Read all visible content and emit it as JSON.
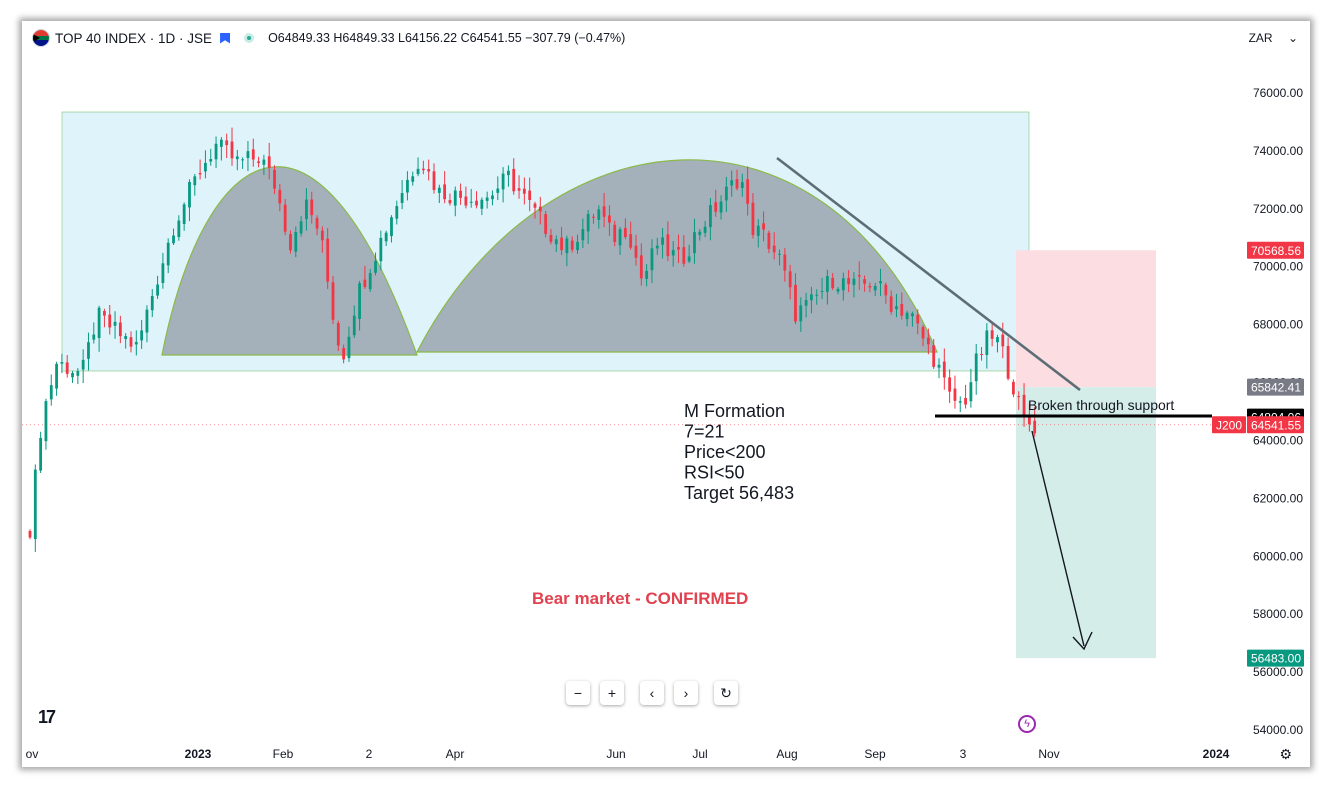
{
  "header": {
    "symbol": "TOP 40 INDEX · 1D · JSE",
    "ohlc": "O64849.33 H64849.33 L64156.22 C64541.55 −307.79 (−0.47%)",
    "currency": "ZAR",
    "currency_caret": "⌄"
  },
  "colors": {
    "up": "#089981",
    "down": "#f23645",
    "range_box": "#dff3fb",
    "dome_fill": "#9aa5ae",
    "dome_stroke": "#8bb94a",
    "stop_zone": "#fbdde2",
    "target_zone": "#d5ede8"
  },
  "chart_data": {
    "type": "candlestick",
    "y_axis": {
      "min": 53000,
      "max": 78000,
      "ticks": [
        54000,
        56000,
        58000,
        60000,
        62000,
        64000,
        66000,
        68000,
        70000,
        72000,
        74000,
        76000
      ],
      "tick_labels": [
        "54000.00",
        "56000.00",
        "58000.00",
        "60000.00",
        "62000.00",
        "64000.00",
        "66000.00",
        "68000.00",
        "70000.00",
        "72000.00",
        "74000.00",
        "76000.00"
      ]
    },
    "x_axis": {
      "labels": [
        "ov",
        "2023",
        "Feb",
        "2",
        "Apr",
        "Jun",
        "Jul",
        "Aug",
        "Sep",
        "3",
        "Nov",
        "2024"
      ]
    },
    "grid": false,
    "price_path": [
      [
        0,
        61000
      ],
      [
        8,
        64800
      ],
      [
        18,
        66700
      ],
      [
        35,
        66300
      ],
      [
        45,
        68300
      ],
      [
        62,
        67600
      ],
      [
        72,
        67200
      ],
      [
        82,
        69000
      ],
      [
        97,
        71500
      ],
      [
        115,
        73400
      ],
      [
        125,
        74200
      ],
      [
        140,
        73600
      ],
      [
        155,
        73800
      ],
      [
        165,
        72800
      ],
      [
        175,
        70800
      ],
      [
        185,
        72200
      ],
      [
        195,
        71200
      ],
      [
        205,
        68000
      ],
      [
        210,
        66800
      ],
      [
        220,
        69000
      ],
      [
        235,
        70800
      ],
      [
        250,
        72600
      ],
      [
        262,
        73800
      ],
      [
        275,
        72600
      ],
      [
        292,
        72400
      ],
      [
        308,
        72400
      ],
      [
        322,
        73100
      ],
      [
        332,
        72400
      ],
      [
        345,
        71500
      ],
      [
        360,
        70600
      ],
      [
        372,
        71300
      ],
      [
        382,
        72000
      ],
      [
        392,
        71000
      ],
      [
        402,
        71400
      ],
      [
        412,
        69500
      ],
      [
        422,
        70800
      ],
      [
        438,
        70200
      ],
      [
        450,
        71300
      ],
      [
        465,
        72300
      ],
      [
        478,
        73200
      ],
      [
        485,
        71400
      ],
      [
        495,
        71000
      ],
      [
        505,
        70200
      ],
      [
        515,
        68400
      ],
      [
        525,
        68700
      ],
      [
        540,
        69600
      ],
      [
        555,
        69300
      ],
      [
        568,
        69500
      ],
      [
        580,
        68700
      ],
      [
        592,
        68400
      ],
      [
        600,
        67600
      ],
      [
        610,
        66700
      ],
      [
        618,
        65500
      ],
      [
        628,
        65200
      ],
      [
        636,
        66600
      ],
      [
        645,
        67600
      ],
      [
        652,
        67400
      ],
      [
        660,
        66200
      ],
      [
        668,
        64700
      ],
      [
        676,
        64500
      ]
    ],
    "last_price": 64541.55,
    "levels": [
      {
        "label": "70568.56",
        "value": 70568.56,
        "color": "#f23645"
      },
      {
        "label": "65842.41",
        "value": 65842.41,
        "color": "#787b86"
      },
      {
        "label": "64804.06",
        "value": 64804.06,
        "color": "#000000"
      },
      {
        "label": "64541.55",
        "value": 64541.55,
        "color": "#f23645",
        "tag": "J200"
      },
      {
        "label": "56483.00",
        "value": 56483.0,
        "color": "#089981"
      }
    ],
    "annotations": {
      "pattern_note": [
        "M Formation",
        "7=21",
        "Price<200",
        "RSI<50",
        "Target 56,483"
      ],
      "support_note": "Broken through support",
      "market_note": "Bear market - CONFIRMED"
    }
  },
  "nav_buttons": {
    "zoom_out": "−",
    "zoom_in": "+",
    "back": "‹",
    "forward": "›",
    "reset": "↻"
  },
  "logo": "17",
  "bolt": "ϟ",
  "gear": "⚙"
}
